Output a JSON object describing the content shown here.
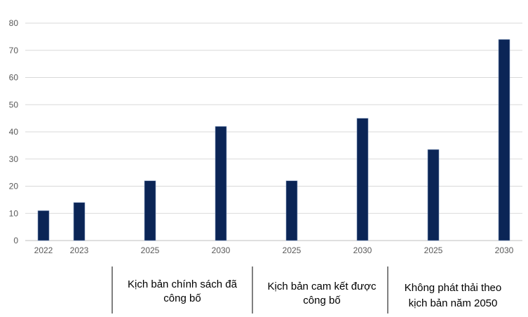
{
  "chart_data": {
    "type": "bar",
    "ylim": [
      0,
      80
    ],
    "yticks": [
      0,
      10,
      20,
      30,
      40,
      50,
      60,
      70,
      80
    ],
    "grid": true,
    "bar_color": "#0b2556",
    "grid_color": "#d9d9d9",
    "categories": [
      "2022",
      "2023",
      "2025",
      "2030",
      "2025",
      "2030",
      "2025",
      "2030"
    ],
    "values": [
      11,
      14,
      22,
      42,
      22,
      45,
      33.5,
      74
    ],
    "groups": [
      {
        "lines": [
          "Kịch bản chính sách đã",
          "công bố"
        ]
      },
      {
        "lines": [
          "Kịch bản cam kết được",
          "công bố"
        ]
      },
      {
        "lines": [
          "Không phát thải theo",
          "kịch bản năm 2050"
        ]
      }
    ]
  }
}
